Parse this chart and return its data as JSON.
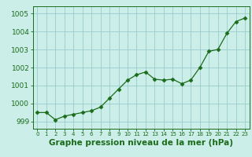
{
  "x": [
    0,
    1,
    2,
    3,
    4,
    5,
    6,
    7,
    8,
    9,
    10,
    11,
    12,
    13,
    14,
    15,
    16,
    17,
    18,
    19,
    20,
    21,
    22,
    23
  ],
  "y": [
    999.5,
    999.5,
    999.1,
    999.3,
    999.4,
    999.5,
    999.6,
    999.8,
    1000.3,
    1000.8,
    1001.3,
    1001.6,
    1001.75,
    1001.35,
    1001.3,
    1001.35,
    1001.1,
    1001.3,
    1002.0,
    1002.9,
    1003.0,
    1003.9,
    1004.55,
    1004.75
  ],
  "line_color": "#1a6b1a",
  "marker": "D",
  "marker_size": 2.5,
  "bg_color": "#cceee8",
  "grid_color": "#99cccc",
  "xlabel": "Graphe pression niveau de la mer (hPa)",
  "xlabel_color": "#1a6b1a",
  "ylabel_ticks": [
    999,
    1000,
    1001,
    1002,
    1003,
    1004,
    1005
  ],
  "xlim": [
    -0.5,
    23.5
  ],
  "ylim": [
    998.6,
    1005.4
  ],
  "xtick_labels": [
    "0",
    "1",
    "2",
    "3",
    "4",
    "5",
    "6",
    "7",
    "8",
    "9",
    "10",
    "11",
    "12",
    "13",
    "14",
    "15",
    "16",
    "17",
    "18",
    "19",
    "20",
    "21",
    "22",
    "23"
  ],
  "ytick_fontsize": 6.5,
  "xtick_fontsize": 5.0,
  "xlabel_fontsize": 7.5
}
